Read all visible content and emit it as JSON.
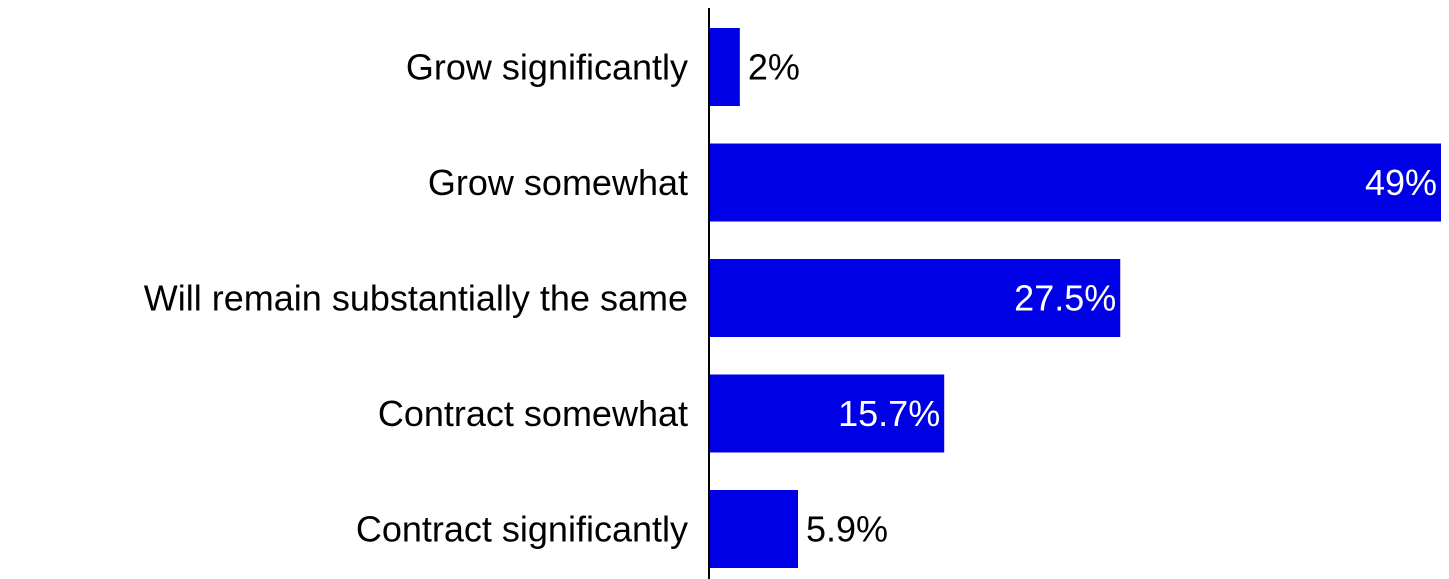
{
  "chart_data": {
    "type": "bar",
    "orientation": "horizontal",
    "categories": [
      "Grow significantly",
      "Grow somewhat",
      "Will remain substantially the same",
      "Contract somewhat",
      "Contract significantly"
    ],
    "values": [
      2,
      49,
      27.5,
      15.7,
      5.9
    ],
    "data_labels": [
      "2%",
      "49%",
      "27.5%",
      "15.7%",
      "5.9%"
    ],
    "unit": "%",
    "xlim": [
      0,
      49
    ],
    "grid": false,
    "legend": "none",
    "colors": {
      "bar": "#0000e6",
      "axis": "#000000",
      "label_inside": "#ffffff",
      "label_outside": "#000000"
    }
  }
}
